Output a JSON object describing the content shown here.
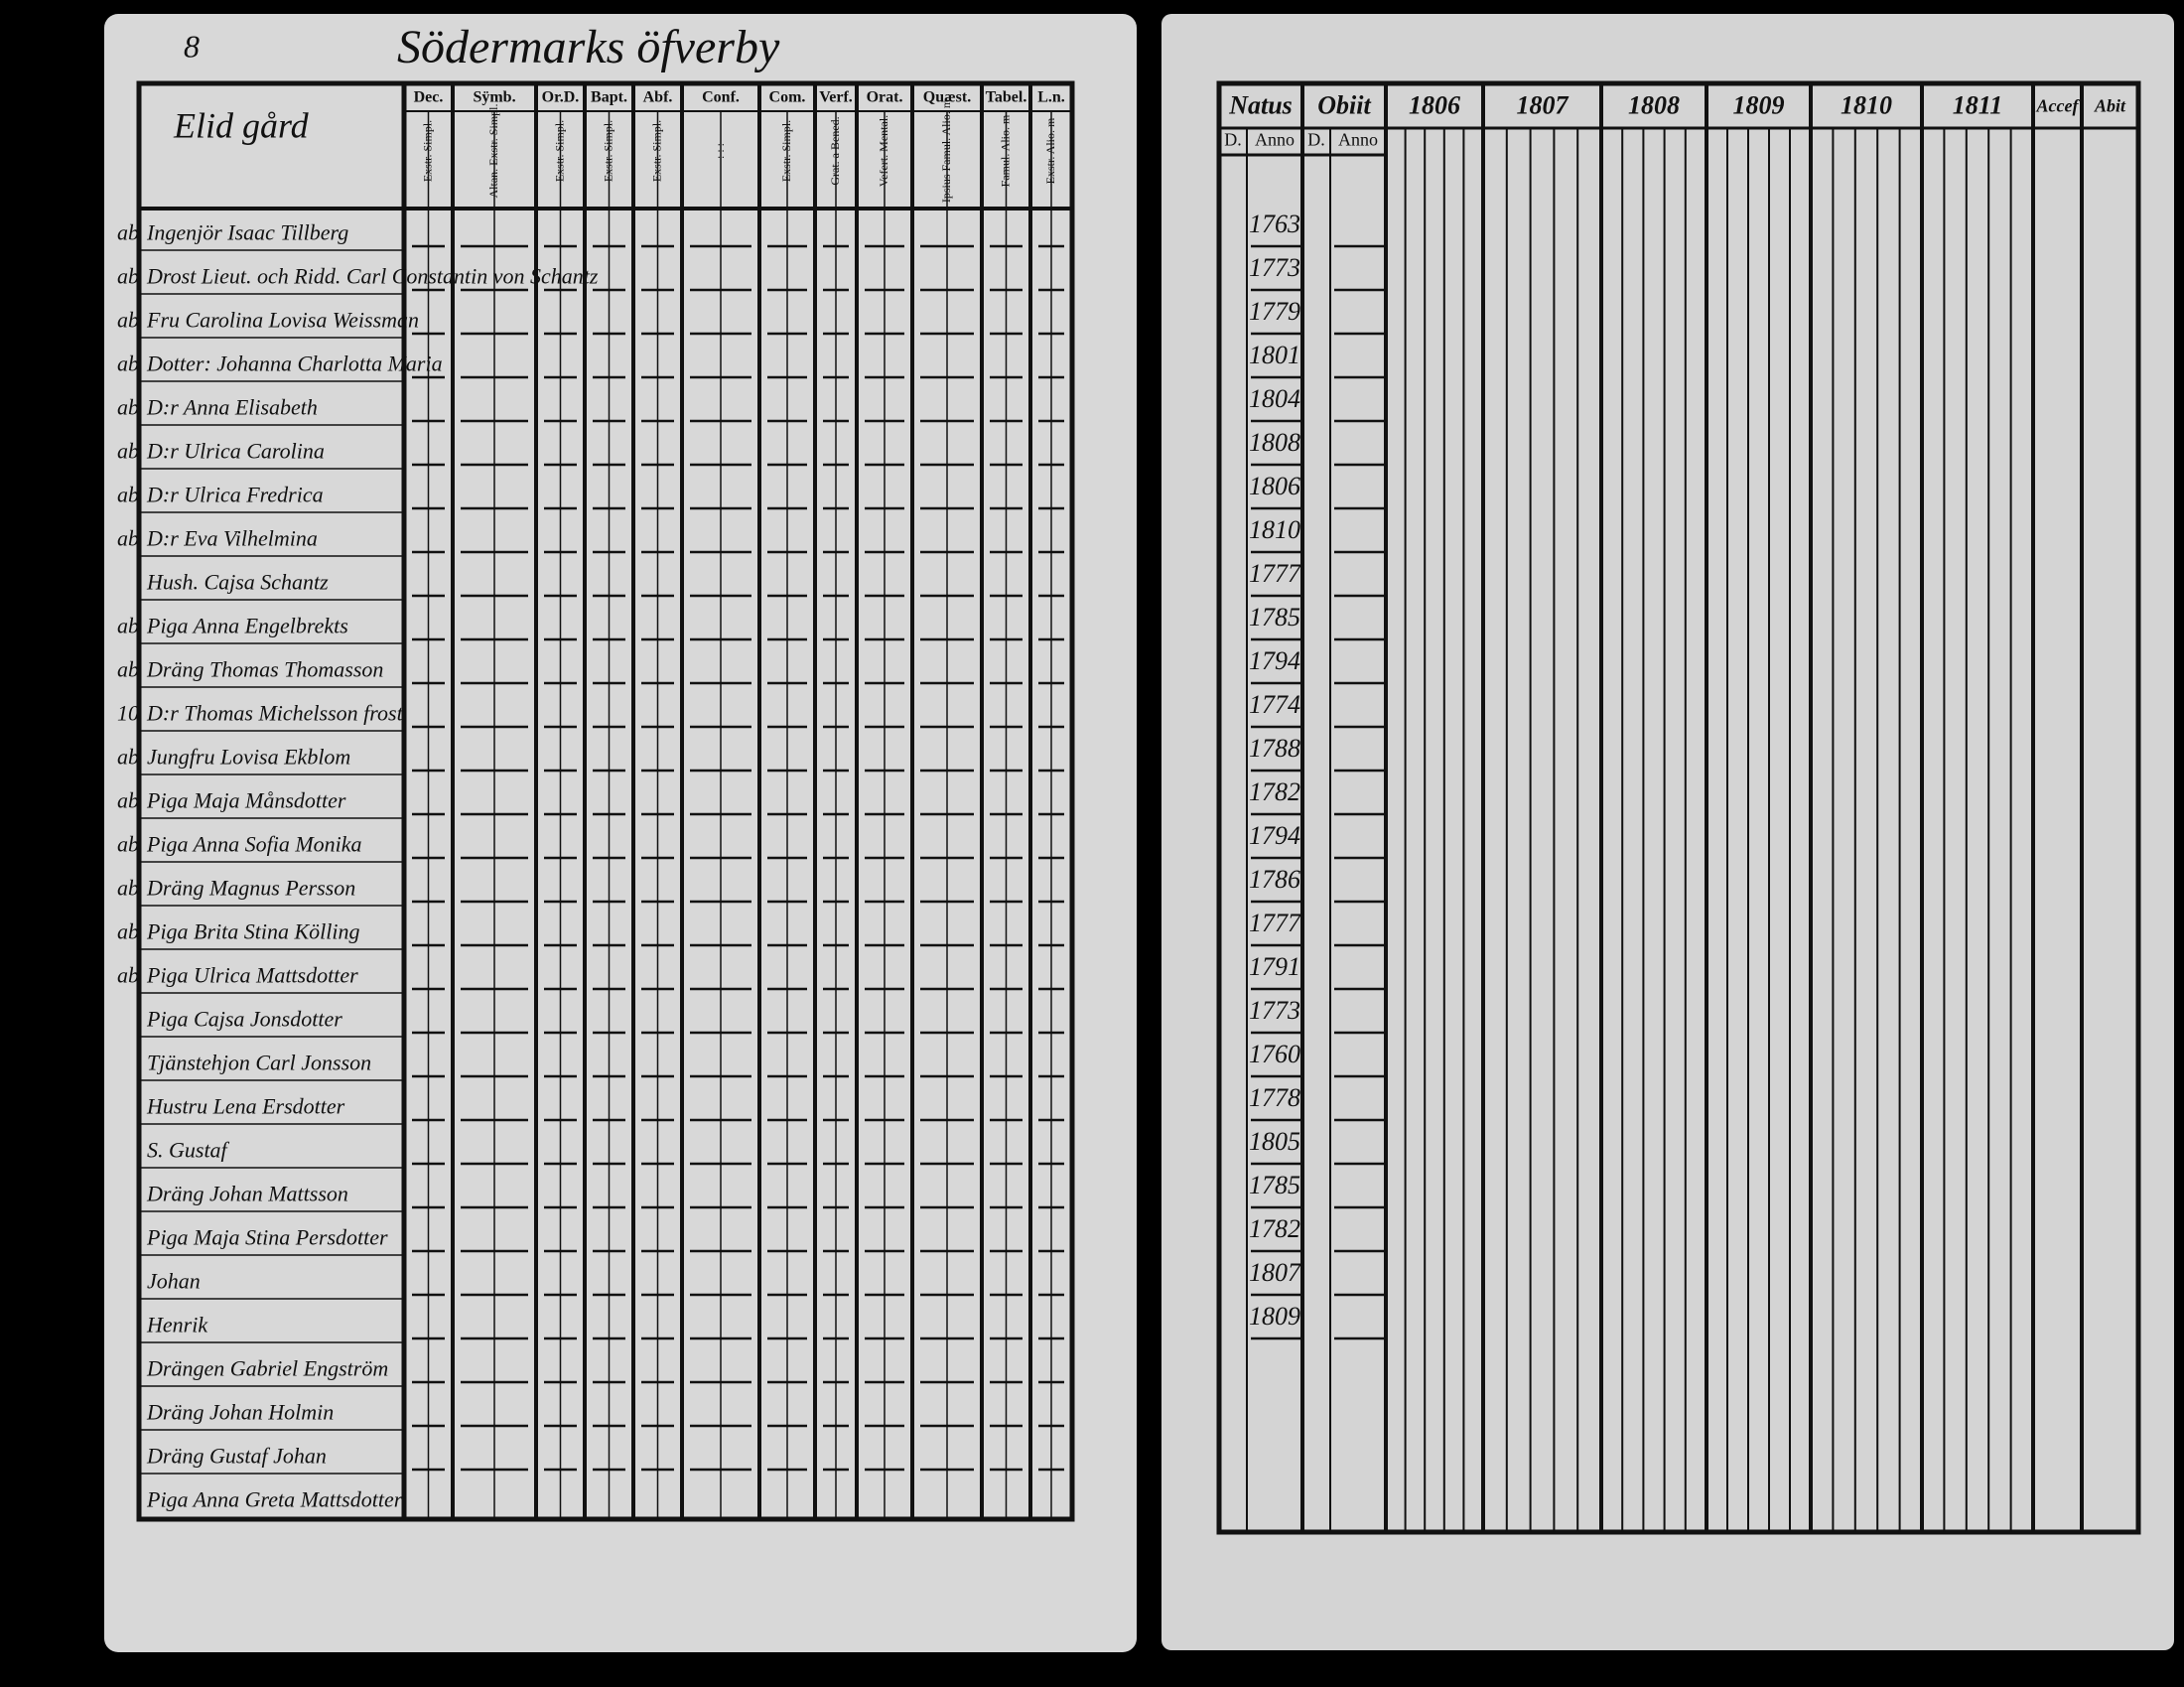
{
  "left_page": {
    "page_number": "8",
    "title": "Södermarks öfverby",
    "table": {
      "corner": "Elid gård",
      "columns": [
        {
          "label": "Dec.",
          "sub": "Exstr. Simpl."
        },
        {
          "label": "Sÿmb.",
          "sub": "Altan. Exstr. Simpl."
        },
        {
          "label": "Or.D.",
          "sub": "Exstr. Simpl."
        },
        {
          "label": "Bapt.",
          "sub": "Exstr. Simpl."
        },
        {
          "label": "Abf.",
          "sub": "Exstr. Simpl."
        },
        {
          "label": "Conf.",
          "sub": ": : :"
        },
        {
          "label": "Com.",
          "sub": "Exstr. Simpl."
        },
        {
          "label": "Verf.",
          "sub": "Grat. a Bened."
        },
        {
          "label": "Orat.",
          "sub": "Vefert. Mental."
        },
        {
          "label": "Quæst.",
          "sub": "Ipsius Famul. Alio. m"
        },
        {
          "label": "Tabel.",
          "sub": "Famul. Alio. m"
        },
        {
          "label": "L.n.",
          "sub": "Exstr. Alio. m"
        }
      ],
      "rows": [
        {
          "margin": "ab",
          "name": "Ingenjör Isaac Tillberg"
        },
        {
          "margin": "ab",
          "name": "Drost Lieut. och Ridd. Carl Constantin von Schantz"
        },
        {
          "margin": "ab",
          "name": "Fru Carolina Lovisa Weissman"
        },
        {
          "margin": "ab",
          "name": "Dotter: Johanna Charlotta Maria"
        },
        {
          "margin": "ab",
          "name": "D:r Anna Elisabeth"
        },
        {
          "margin": "ab",
          "name": "D:r Ulrica Carolina"
        },
        {
          "margin": "ab",
          "name": "D:r Ulrica Fredrica"
        },
        {
          "margin": "ab",
          "name": "D:r Eva Vilhelmina"
        },
        {
          "name": "Hush. Cajsa Schantz"
        },
        {
          "margin": "ab",
          "name": "Piga Anna Engelbrekts"
        },
        {
          "margin": "ab",
          "name": "Dräng Thomas Thomasson"
        },
        {
          "margin": "10",
          "name": "D:r Thomas Michelsson frost"
        },
        {
          "margin": "ab",
          "name": "Jungfru Lovisa Ekblom"
        },
        {
          "margin": "ab",
          "name": "Piga Maja Månsdotter"
        },
        {
          "margin": "ab",
          "name": "Piga Anna Sofia Monika"
        },
        {
          "margin": "ab",
          "name": "Dräng Magnus Persson"
        },
        {
          "margin": "ab",
          "name": "Piga Brita Stina Kölling"
        },
        {
          "margin": "ab",
          "name": "Piga Ulrica Mattsdotter"
        },
        {
          "name": "Piga Cajsa Jonsdotter"
        },
        {
          "name": "Tjänstehjon Carl Jonsson"
        },
        {
          "name": "Hustru Lena Ersdotter"
        },
        {
          "name": "S. Gustaf"
        },
        {
          "name": "Dräng Johan Mattsson"
        },
        {
          "name": "Piga Maja Stina Persdotter"
        },
        {
          "name": "Johan"
        },
        {
          "name": "Henrik"
        },
        {
          "name": "Drängen Gabriel Engström"
        },
        {
          "name": "Dräng Johan Holmin"
        },
        {
          "name": "Dräng Gustaf Johan"
        },
        {
          "name": "Piga Anna Greta Mattsdotter"
        }
      ]
    }
  },
  "right_page": {
    "table": {
      "headers": [
        "Natus",
        "Obiit",
        "1806",
        "1807",
        "1808",
        "1809",
        "1810",
        "1811",
        "Accef",
        "Abit"
      ],
      "subheaders": [
        "D.",
        "Anno",
        "D.",
        "Anno"
      ],
      "birth_years": [
        "1763",
        "1773",
        "1779",
        "1801",
        "1804",
        "1808",
        "1806",
        "1810",
        "1777",
        "1785",
        "1794",
        "1774",
        "1788",
        "1782",
        "1794",
        "1786",
        "1777",
        "1791",
        "1773",
        "1760",
        "1778",
        "1805",
        "1785",
        "1782",
        "1807",
        "1809"
      ]
    }
  }
}
